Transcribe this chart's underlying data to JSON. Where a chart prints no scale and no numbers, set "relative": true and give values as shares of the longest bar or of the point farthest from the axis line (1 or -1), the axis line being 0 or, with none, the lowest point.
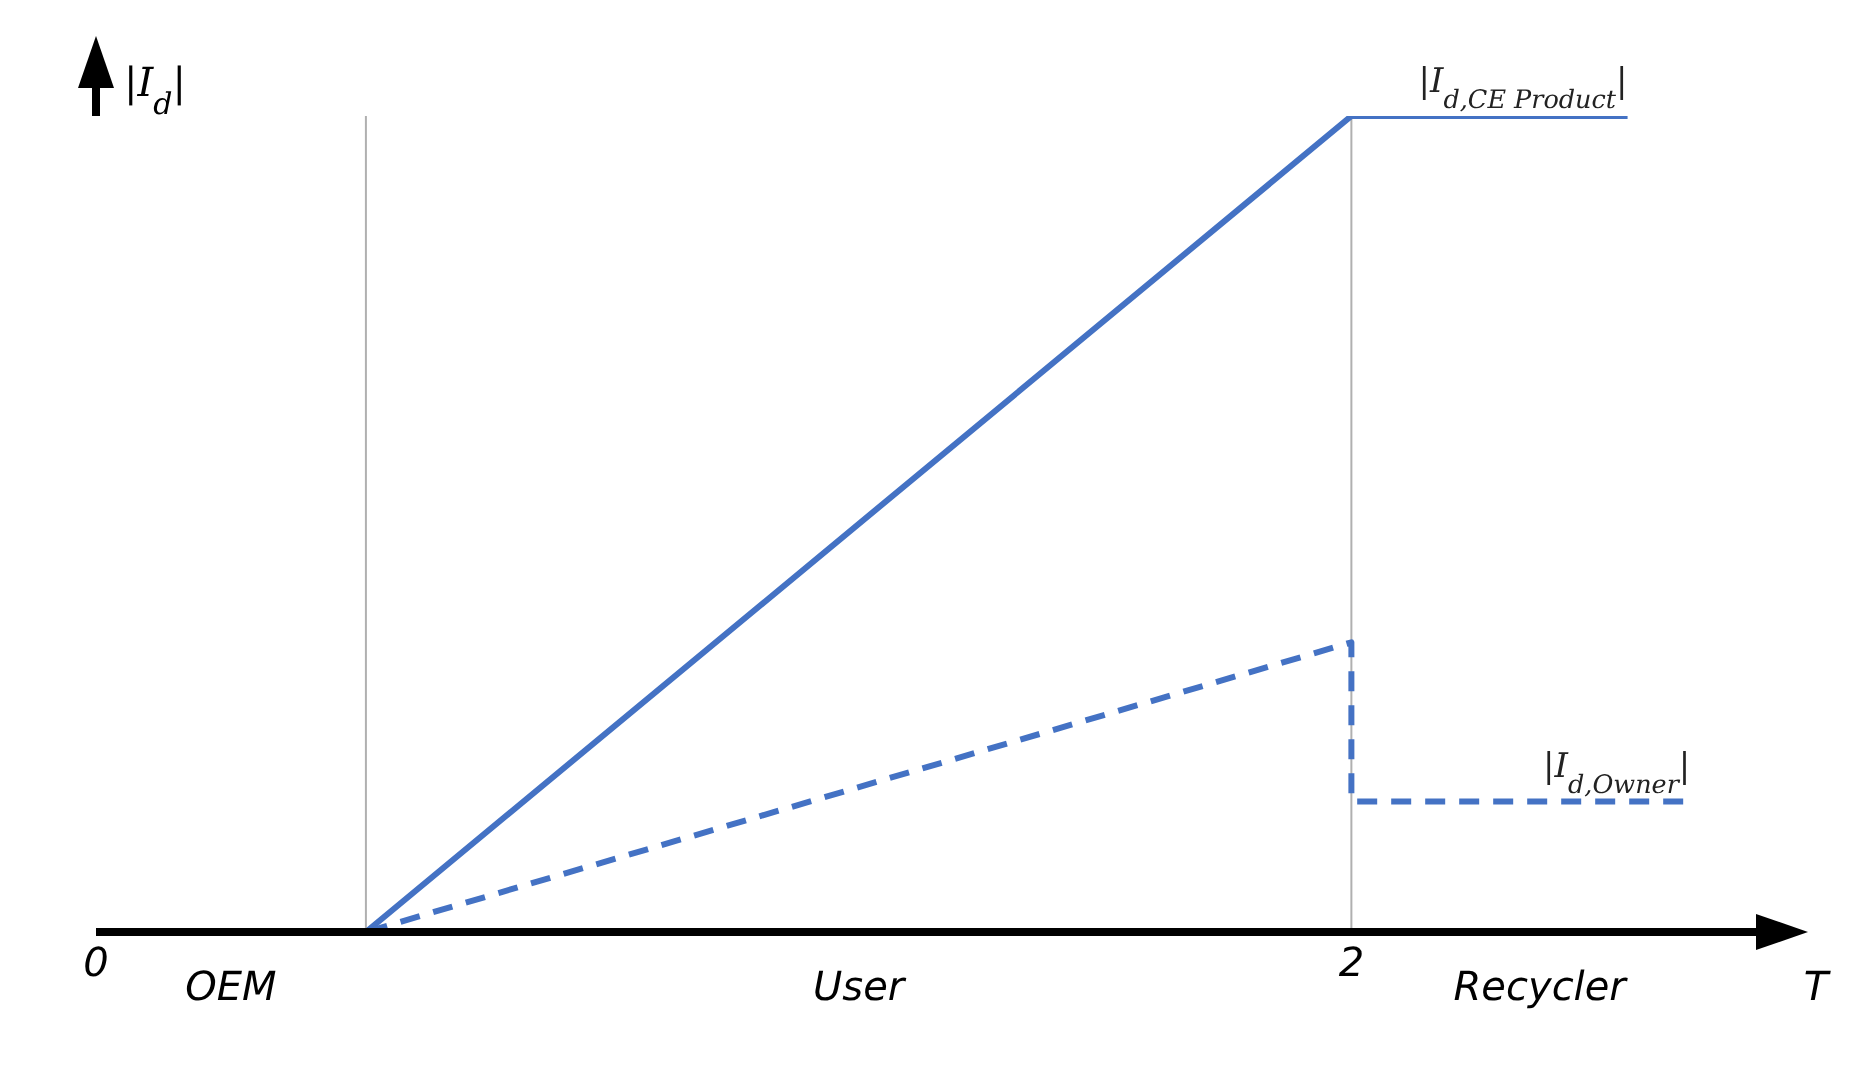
{
  "chart_data": {
    "type": "line",
    "relative": true,
    "xlabel": "T",
    "ylabel": "|I$_{d}$|",
    "xlim": [
      0,
      2.6
    ],
    "xticks": [
      0,
      2
    ],
    "marker": "none",
    "series": [
      {
        "name": "|I$_{d,CE Product}$|",
        "color": "#4472c4",
        "line_style": "solid",
        "x": [
          0,
          0.43,
          2,
          2.44
        ],
        "values": [
          0,
          0,
          1,
          1
        ]
      },
      {
        "name": "|I$_{d,Owner}$|",
        "color": "#4472c4",
        "line_style": "dashed",
        "x": [
          0,
          0.43,
          2,
          2,
          2.54
        ],
        "values": [
          0,
          0,
          0.355,
          0.16,
          0.16
        ]
      }
    ],
    "ref_lines": [
      {
        "axis": "x",
        "value": 0.43,
        "color": "#b0b0b0"
      },
      {
        "axis": "x",
        "value": 2,
        "color": "#b0b0b0"
      }
    ],
    "annotations": [
      "OEM",
      "User",
      "Recycler"
    ]
  }
}
